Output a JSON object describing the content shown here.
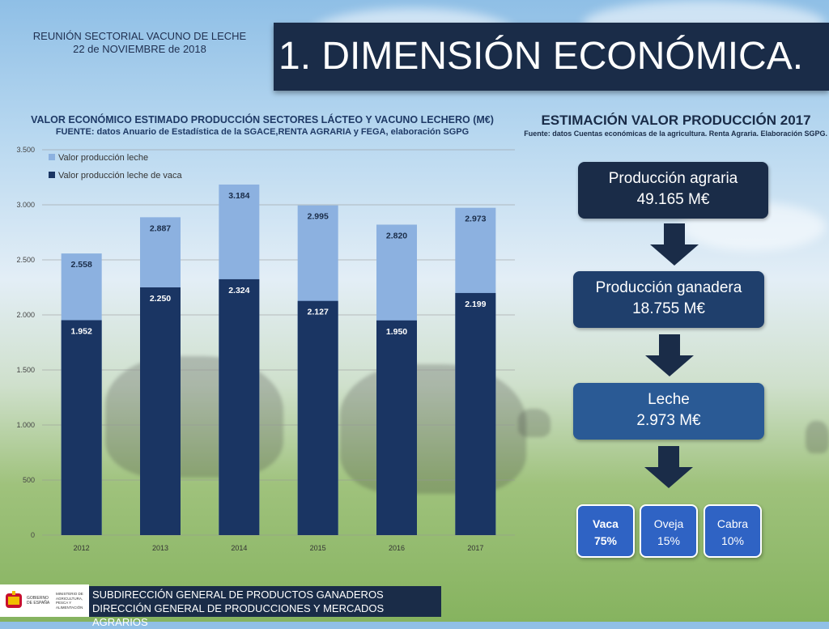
{
  "header": {
    "meeting": "REUNIÓN SECTORIAL VACUNO DE LECHE",
    "date": "22 de NOVIEMBRE de 2018",
    "title": "1. DIMENSIÓN ECONÓMICA."
  },
  "left_chart": {
    "title": "VALOR ECONÓMICO ESTIMADO PRODUCCIÓN SECTORES LÁCTEO Y VACUNO LECHERO (M€)",
    "source": "FUENTE: datos Anuario de Estadística de la SGACE,RENTA AGRARIA y FEGA, elaboración SGPG"
  },
  "chart_data": {
    "type": "bar",
    "categories": [
      "2012",
      "2013",
      "2014",
      "2015",
      "2016",
      "2017"
    ],
    "series": [
      {
        "name": "Valor producción leche",
        "values": [
          2558,
          2887,
          3184,
          2995,
          2820,
          2973
        ],
        "labels": [
          "2.558",
          "2.887",
          "3.184",
          "2.995",
          "2.820",
          "2.973"
        ],
        "color": "#8cb1e0"
      },
      {
        "name": "Valor producción leche de vaca",
        "values": [
          1952,
          2250,
          2324,
          2127,
          1950,
          2199
        ],
        "labels": [
          "1.952",
          "2.250",
          "2.324",
          "2.127",
          "1.950",
          "2.199"
        ],
        "color": "#1a3563"
      }
    ],
    "yticks": [
      0,
      500,
      1000,
      1500,
      2000,
      2500,
      3000,
      3500
    ],
    "ytick_labels": [
      "0",
      "500",
      "1.000",
      "1.500",
      "2.000",
      "2.500",
      "3.000",
      "3.500"
    ],
    "ylim": [
      0,
      3500
    ],
    "grid": true,
    "legend": "top-left"
  },
  "right_panel": {
    "title": "ESTIMACIÓN VALOR PRODUCCIÓN 2017",
    "source": "Fuente: datos Cuentas económicas de la agricultura. Renta Agraria. Elaboración SGPG.",
    "flow": [
      {
        "label": "Producción agraria",
        "value": "49.165 M€",
        "color": "#1a2c48"
      },
      {
        "label": "Producción ganadera",
        "value": "18.755 M€",
        "color": "#1f3f6c"
      },
      {
        "label": "Leche",
        "value": "2.973 M€",
        "color": "#2a5a95"
      }
    ],
    "arrow_color": "#1a2c48",
    "split": [
      {
        "label": "Vaca",
        "value": "75%",
        "bold": true
      },
      {
        "label": "Oveja",
        "value": "15%",
        "bold": false
      },
      {
        "label": "Cabra",
        "value": "10%",
        "bold": false
      }
    ]
  },
  "footer": {
    "logo_text_1": "GOBIERNO DE ESPAÑA",
    "logo_text_2": "MINISTERIO DE AGRICULTURA, PESCA Y ALIMENTACIÓN",
    "line1": "SUBDIRECCIÓN GENERAL DE PRODUCTOS GANADEROS",
    "line2": "DIRECCIÓN GENERAL DE PRODUCCIONES Y MERCADOS AGRARIOS"
  }
}
